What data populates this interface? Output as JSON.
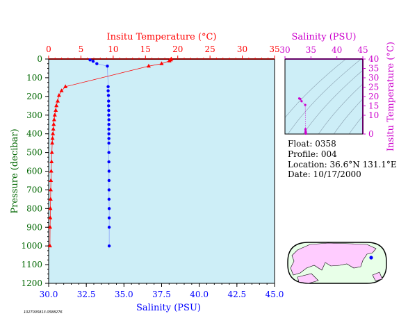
{
  "colors": {
    "plot_bg": "#cdeef7",
    "temperature": "#ff0000",
    "salinity": "#0000ff",
    "salinity_axis": "#cc00cc",
    "pressure_axis": "#006600",
    "land": "#ffccff",
    "ocean": "#e8ffe8"
  },
  "chart_data": [
    {
      "type": "scatter",
      "name": "profile",
      "title": "",
      "xlabel_top": "Insitu Temperature (°C)",
      "xlabel_bottom": "Salinity (PSU)",
      "ylabel": "Pressure (decibar)",
      "temperature_range": [
        0,
        35
      ],
      "salinity_range": [
        30.0,
        45.0
      ],
      "pressure_range": [
        0,
        1200
      ],
      "y_inverted": true,
      "temperature_ticks": [
        "0",
        "5",
        "10",
        "15",
        "20",
        "25",
        "30",
        "35"
      ],
      "salinity_ticks": [
        "30.0",
        "32.5",
        "35.0",
        "37.5",
        "40.0",
        "42.5",
        "45.0"
      ],
      "pressure_ticks": [
        "0",
        "100",
        "200",
        "300",
        "400",
        "500",
        "600",
        "700",
        "800",
        "900",
        "1000",
        "1100",
        "1200"
      ],
      "series": [
        {
          "name": "Temperature",
          "marker": "triangle",
          "points": [
            {
              "t": 19.0,
              "p": 0
            },
            {
              "t": 18.9,
              "p": 5
            },
            {
              "t": 18.7,
              "p": 10
            },
            {
              "t": 17.5,
              "p": 25
            },
            {
              "t": 15.5,
              "p": 38
            },
            {
              "t": 2.6,
              "p": 148
            },
            {
              "t": 2.0,
              "p": 170
            },
            {
              "t": 1.6,
              "p": 195
            },
            {
              "t": 1.4,
              "p": 225
            },
            {
              "t": 1.2,
              "p": 250
            },
            {
              "t": 1.1,
              "p": 275
            },
            {
              "t": 0.95,
              "p": 300
            },
            {
              "t": 0.85,
              "p": 325
            },
            {
              "t": 0.78,
              "p": 350
            },
            {
              "t": 0.72,
              "p": 375
            },
            {
              "t": 0.66,
              "p": 400
            },
            {
              "t": 0.6,
              "p": 425
            },
            {
              "t": 0.55,
              "p": 450
            },
            {
              "t": 0.5,
              "p": 500
            },
            {
              "t": 0.45,
              "p": 550
            },
            {
              "t": 0.4,
              "p": 600
            },
            {
              "t": 0.35,
              "p": 650
            },
            {
              "t": 0.32,
              "p": 700
            },
            {
              "t": 0.3,
              "p": 750
            },
            {
              "t": 0.27,
              "p": 800
            },
            {
              "t": 0.25,
              "p": 850
            },
            {
              "t": 0.22,
              "p": 900
            },
            {
              "t": 0.2,
              "p": 1000
            }
          ]
        },
        {
          "name": "Salinity",
          "marker": "circle",
          "points": [
            {
              "s": 32.75,
              "p": 5
            },
            {
              "s": 32.95,
              "p": 12
            },
            {
              "s": 33.2,
              "p": 25
            },
            {
              "s": 33.9,
              "p": 38
            },
            {
              "s": 33.95,
              "p": 148
            },
            {
              "s": 33.95,
              "p": 170
            },
            {
              "s": 33.97,
              "p": 195
            },
            {
              "s": 33.98,
              "p": 225
            },
            {
              "s": 33.98,
              "p": 250
            },
            {
              "s": 33.99,
              "p": 275
            },
            {
              "s": 33.99,
              "p": 300
            },
            {
              "s": 34.0,
              "p": 325
            },
            {
              "s": 34.0,
              "p": 350
            },
            {
              "s": 34.0,
              "p": 375
            },
            {
              "s": 34.0,
              "p": 400
            },
            {
              "s": 34.0,
              "p": 425
            },
            {
              "s": 34.0,
              "p": 450
            },
            {
              "s": 34.0,
              "p": 500
            },
            {
              "s": 34.0,
              "p": 550
            },
            {
              "s": 34.01,
              "p": 600
            },
            {
              "s": 34.01,
              "p": 650
            },
            {
              "s": 34.01,
              "p": 700
            },
            {
              "s": 34.01,
              "p": 750
            },
            {
              "s": 34.02,
              "p": 800
            },
            {
              "s": 34.02,
              "p": 850
            },
            {
              "s": 34.02,
              "p": 900
            },
            {
              "s": 34.02,
              "p": 1000
            }
          ]
        }
      ]
    },
    {
      "type": "scatter",
      "name": "ts-diagram",
      "title": "",
      "xlabel": "Salinity (PSU)",
      "ylabel": "Insitu Temperature (°C)",
      "xlim": [
        30,
        45
      ],
      "ylim": [
        0,
        40
      ],
      "x_ticks": [
        "30",
        "35",
        "40",
        "45"
      ],
      "y_ticks": [
        "0",
        "10",
        "15",
        "20",
        "25",
        "30",
        "35",
        "40"
      ],
      "points": [
        {
          "s": 32.75,
          "t": 19.0
        },
        {
          "s": 32.95,
          "t": 18.7
        },
        {
          "s": 33.2,
          "t": 17.5
        },
        {
          "s": 33.9,
          "t": 15.5
        },
        {
          "s": 33.95,
          "t": 2.6
        },
        {
          "s": 33.97,
          "t": 1.6
        },
        {
          "s": 33.99,
          "t": 1.1
        },
        {
          "s": 34.0,
          "t": 0.8
        },
        {
          "s": 34.0,
          "t": 0.6
        },
        {
          "s": 34.01,
          "t": 0.4
        },
        {
          "s": 34.02,
          "t": 0.2
        }
      ]
    }
  ],
  "info": {
    "float": "Float:  0358",
    "profile": "Profile:  004",
    "location": "Location:  36.6°N  131.1°E",
    "date": "Date:  10/17/2000"
  },
  "footer_id": "1027005813.0588276"
}
